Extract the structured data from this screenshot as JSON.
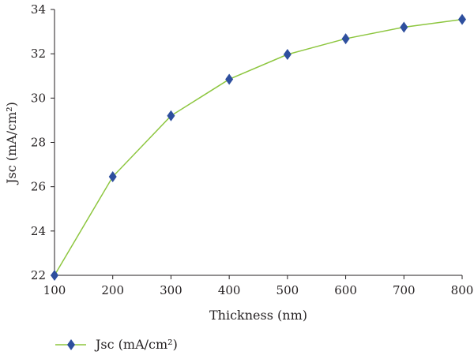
{
  "chart_data": {
    "type": "line",
    "x": [
      100,
      200,
      300,
      400,
      500,
      600,
      700,
      800
    ],
    "series": [
      {
        "name": "Jsc (mA/cm²)",
        "values": [
          22.0,
          26.45,
          29.2,
          30.85,
          31.97,
          32.68,
          33.2,
          33.55
        ]
      }
    ],
    "xlabel": "Thickness (nm)",
    "ylabel": "Jsc (mA/cm²)",
    "xlim": [
      100,
      800
    ],
    "ylim": [
      22,
      34
    ],
    "xticks": [
      "100",
      "200",
      "300",
      "400",
      "500",
      "600",
      "700",
      "800"
    ],
    "yticks": [
      "22",
      "24",
      "26",
      "28",
      "30",
      "32",
      "34"
    ],
    "grid": false,
    "legend_position": "bottom-left",
    "colors": {
      "line": "#8dc63f",
      "marker": "#2e4f9e",
      "axis": "#231f20"
    },
    "marker": "diamond"
  }
}
